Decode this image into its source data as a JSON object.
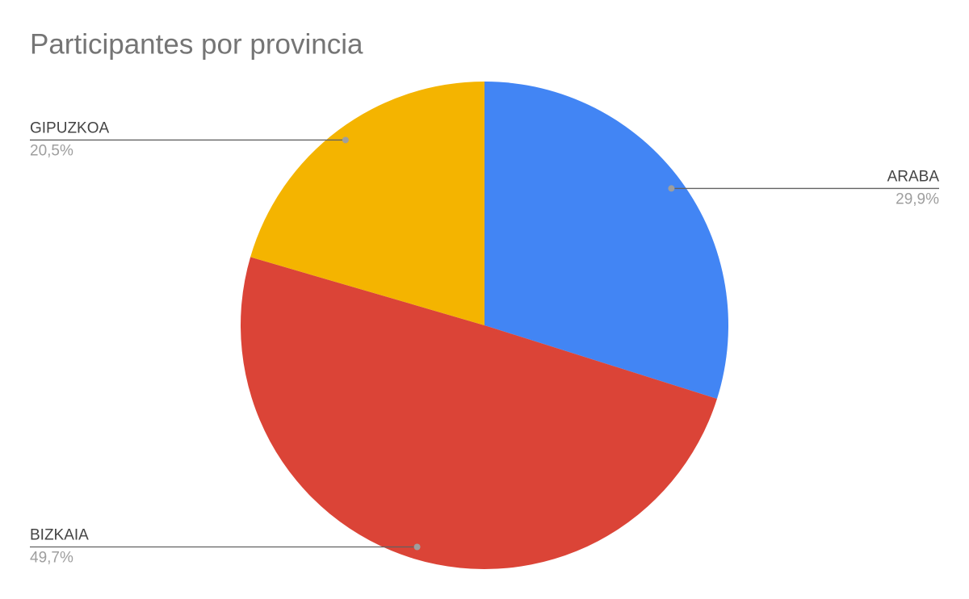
{
  "chart_data": {
    "type": "pie",
    "title": "Participantes por provincia",
    "categories": [
      "ARABA",
      "BIZKAIA",
      "GIPUZKOA"
    ],
    "values": [
      29.9,
      49.7,
      20.5
    ],
    "value_labels": [
      "29,9%",
      "49,7%",
      "20,5%"
    ],
    "colors": [
      "#4285f4",
      "#db4437",
      "#f4b400"
    ]
  }
}
